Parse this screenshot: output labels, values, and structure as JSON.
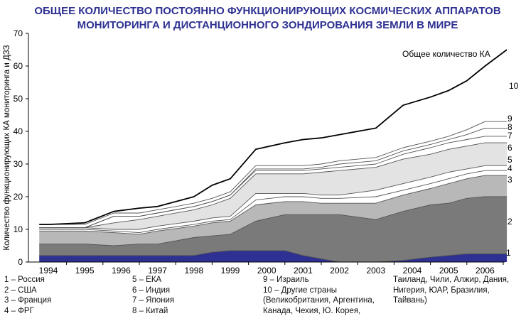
{
  "title": {
    "line1": "ОБЩЕЕ КОЛИЧЕСТВО ПОСТОЯННО ФУНКЦИОНИРУЮЩИХ КОСМИЧЕСКИХ АППАРАТОВ",
    "line2": "МОНИТОРИНГА И ДИСТАНЦИОННОГО ЗОНДИРОВАНИЯ ЗЕМЛИ В МИРЕ"
  },
  "legend": {
    "col1": [
      "1 – Россия",
      "2 – США",
      "3 – Франция",
      "4 – ФРГ"
    ],
    "col2": [
      "5 – ЕКА",
      "6 – Индия",
      "7 – Япония",
      "8 – Китай"
    ],
    "col3": [
      "9 – Израиль",
      "10 – Другие страны",
      "(Великобритания, Аргентина,",
      "Канада, Чехия, Ю. Корея,"
    ],
    "col4": [
      "Таиланд, Чили, Алжир, Дания,",
      "Нигерия, ЮАР, Бразилия,",
      "Тайвань)"
    ]
  },
  "chart_data": {
    "type": "area",
    "stacked": true,
    "ylabel": "Количество функционирующих КА мониторинга и ДЗЗ",
    "xlabel": "",
    "ylim": [
      0,
      70
    ],
    "yticks": [
      0,
      10,
      20,
      30,
      40,
      50,
      60,
      70
    ],
    "categories": [
      "1994",
      "1995",
      "1996",
      "1997",
      "1998",
      "1999",
      "2000",
      "2001",
      "2002",
      "2003",
      "2004",
      "2005",
      "2006"
    ],
    "x": [
      1993.75,
      1994,
      1995,
      1995.8,
      1996.5,
      1997,
      1998,
      1998.5,
      1999,
      1999.7,
      2000.5,
      2001,
      2001.5,
      2002,
      2003,
      2003.75,
      2004.5,
      2005,
      2005.5,
      2006,
      2006.6
    ],
    "series": [
      {
        "name": "1",
        "color": "#2e3192",
        "values": [
          2,
          2,
          2,
          2,
          2,
          2,
          2,
          3,
          3.5,
          3.5,
          3.5,
          2,
          1,
          0,
          0,
          0.5,
          1.5,
          2,
          2.5,
          2.5,
          2.5
        ]
      },
      {
        "name": "2",
        "color": "#7a7a7a",
        "values": [
          3.5,
          3.5,
          3.5,
          3,
          3.5,
          3.5,
          5.5,
          5,
          5,
          9,
          11,
          12.5,
          13.5,
          14.5,
          13,
          15,
          16,
          16,
          17,
          17.5,
          17.5
        ]
      },
      {
        "name": "3",
        "color": "#b8b8b8",
        "values": [
          4,
          4,
          4,
          4,
          3,
          4,
          3.5,
          4,
          4,
          5,
          4,
          4,
          3.5,
          3.5,
          5,
          5,
          5,
          6,
          6,
          6.5,
          6.5
        ]
      },
      {
        "name": "4",
        "color": "#ffffff",
        "values": [
          0.5,
          0.5,
          0.5,
          0.5,
          0.5,
          0.5,
          0.5,
          0.5,
          0.5,
          1.5,
          1.5,
          1.5,
          1.5,
          1.5,
          2,
          1.5,
          1.5,
          1.5,
          1.5,
          1.5,
          1.5
        ]
      },
      {
        "name": "5",
        "color": "#ffffff",
        "values": [
          0.5,
          0.5,
          0.5,
          0.5,
          1,
          1,
          1,
          1,
          1,
          2,
          1,
          1,
          1,
          1,
          2,
          2,
          2,
          2,
          1.5,
          1.5,
          1.5
        ]
      },
      {
        "name": "6",
        "color": "#e3e3e3",
        "values": [
          0,
          0,
          0,
          2,
          3,
          3,
          3.5,
          4,
          5.5,
          6,
          6,
          6,
          7,
          7.5,
          7,
          7.5,
          7,
          7,
          7,
          7,
          7
        ]
      },
      {
        "name": "7",
        "color": "#ffffff",
        "values": [
          0,
          0,
          0,
          2,
          1,
          1,
          1,
          1,
          1,
          1,
          1,
          1,
          1,
          1,
          1,
          1.5,
          2,
          2,
          2,
          2,
          2
        ]
      },
      {
        "name": "8",
        "color": "#ffffff",
        "values": [
          0,
          0,
          0,
          0,
          0,
          0,
          0,
          0,
          0,
          0.5,
          0.5,
          0.5,
          0.5,
          1,
          1,
          1,
          1,
          1,
          1.5,
          2.5,
          2.5
        ]
      },
      {
        "name": "9",
        "color": "#ffffff",
        "values": [
          1,
          1,
          1,
          1,
          1,
          1,
          1,
          1,
          1,
          1,
          1,
          1,
          1,
          1,
          1,
          1,
          1,
          1,
          1.5,
          2,
          2
        ]
      },
      {
        "name": "10",
        "color": "#ffffff",
        "values": [
          0,
          0,
          0.5,
          0.5,
          1.5,
          1,
          2,
          4,
          4,
          5,
          7,
          8,
          8,
          8,
          9,
          13,
          13.5,
          14,
          15,
          17,
          22
        ]
      }
    ],
    "total_line": {
      "name": "Общее количество КА",
      "color": "#000000"
    },
    "right_labels": [
      "1",
      "2",
      "3",
      "4",
      "5",
      "6",
      "7",
      "8",
      "9",
      "10"
    ]
  }
}
